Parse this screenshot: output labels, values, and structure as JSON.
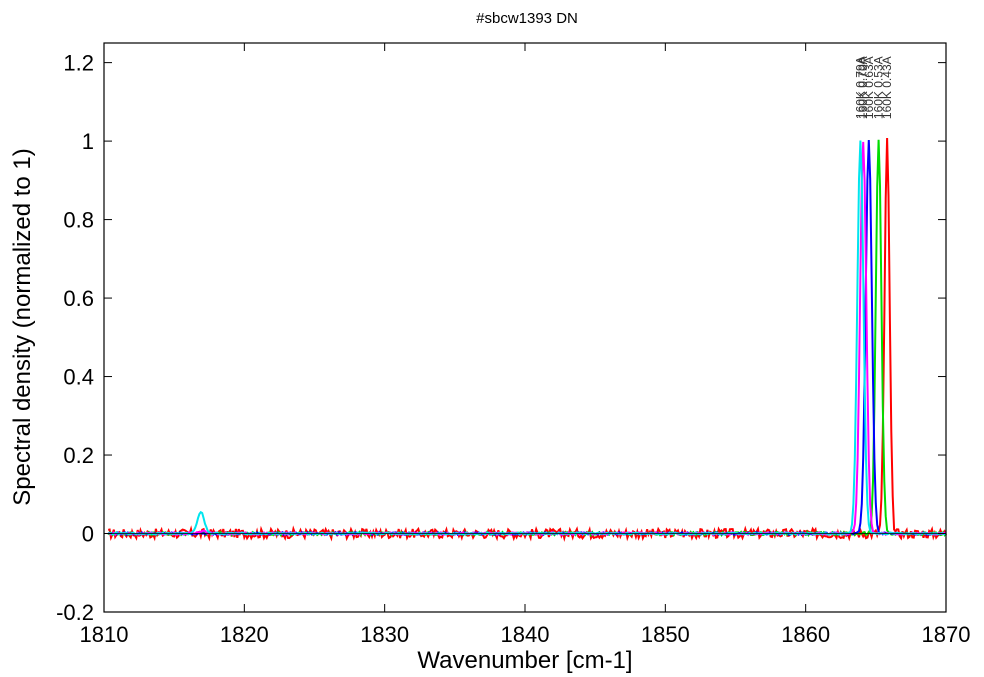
{
  "chart_data": {
    "type": "line",
    "title": "#sbcw1393 DN",
    "xlabel": "Wavenumber [cm-1]",
    "ylabel": "Spectral density (normalized to 1)",
    "xlim": [
      1810,
      1870
    ],
    "ylim": [
      -0.2,
      1.25
    ],
    "xticks": [
      1810,
      1820,
      1830,
      1840,
      1850,
      1860,
      1870
    ],
    "xtick_labels": [
      "1810",
      "1820",
      "1830",
      "1840",
      "1850",
      "1860",
      "1870"
    ],
    "yticks": [
      -0.2,
      0,
      0.2,
      0.4,
      0.6,
      0.8,
      1,
      1.2
    ],
    "ytick_labels": [
      "-0.2",
      "0",
      "0.2",
      "0.4",
      "0.6",
      "0.8",
      "1",
      "1.2"
    ],
    "grid": false,
    "series": [
      {
        "name": "160K 0.43A",
        "color": "#ff0000",
        "peak_x": 1865.8,
        "peak_y": 1.0,
        "width": 0.18,
        "noise": 0.012
      },
      {
        "name": "160K 0.53A",
        "color": "#00dd00",
        "peak_x": 1865.2,
        "peak_y": 1.0,
        "width": 0.2,
        "noise": 0.004
      },
      {
        "name": "160K 0.63A",
        "color": "#0000ff",
        "peak_x": 1864.5,
        "peak_y": 1.0,
        "width": 0.22,
        "noise": 0.003
      },
      {
        "name": "160K 0.70A",
        "color": "#ff00ff",
        "peak_x": 1864.1,
        "peak_y": 1.0,
        "width": 0.22,
        "noise": 0.003,
        "minor_peak_x": 1817.0,
        "minor_peak_y": 0.008
      },
      {
        "name": "160K 0.79A",
        "color": "#00e5ee",
        "peak_x": 1863.9,
        "peak_y": 1.0,
        "width": 0.22,
        "noise": 0.002,
        "minor_peak_x": 1816.9,
        "minor_peak_y": 0.055
      }
    ]
  }
}
